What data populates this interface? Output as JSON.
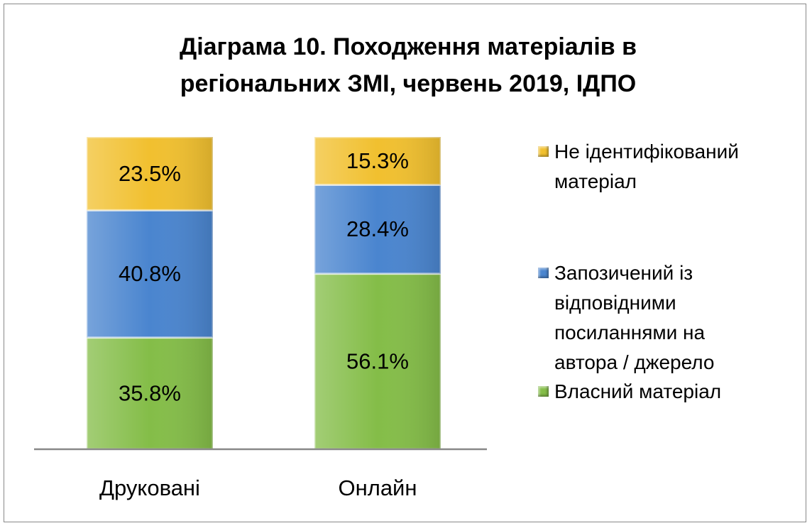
{
  "chart_data": {
    "type": "bar",
    "stacking": "percent",
    "title": "Діаграма 10. Походження матеріалів в регіональних ЗМІ, червень 2019, ІДПО",
    "categories": [
      "Друковані",
      "Онлайн"
    ],
    "series": [
      {
        "name": "Власний матеріал",
        "color": "#84bd48",
        "values": [
          35.8,
          56.1
        ],
        "value_labels": [
          "35.8%",
          "56.1%"
        ]
      },
      {
        "name": "Запозичений із відповідними посиланнями на автора / джерело",
        "color": "#4a85cf",
        "values": [
          40.8,
          28.4
        ],
        "value_labels": [
          "40.8%",
          "28.4%"
        ]
      },
      {
        "name": "Не ідентифікований матеріал",
        "color": "#f1c02f",
        "values": [
          23.5,
          15.3
        ],
        "value_labels": [
          "23.5%",
          "15.3%"
        ]
      }
    ],
    "legend": "right"
  }
}
